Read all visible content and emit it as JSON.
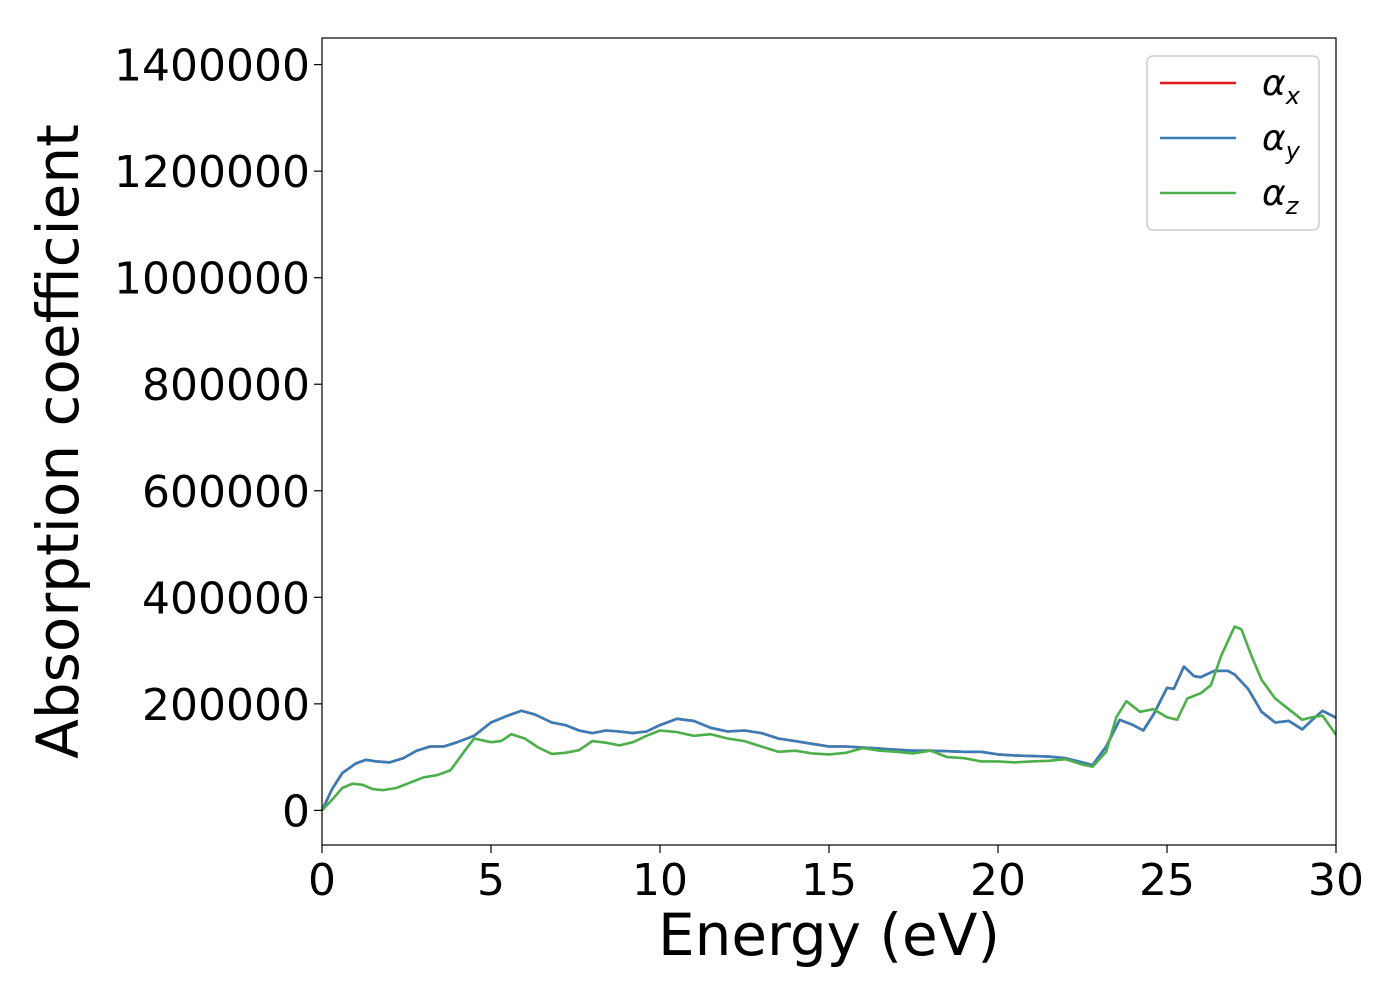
{
  "chart_data": {
    "type": "line",
    "title": "",
    "xlabel": "Energy (eV)",
    "ylabel": "Absorption coefficient",
    "xlim": [
      0,
      30
    ],
    "ylim": [
      -65000,
      1450000
    ],
    "xticks": [
      0,
      5,
      10,
      15,
      20,
      25,
      30
    ],
    "yticks": [
      0,
      200000,
      400000,
      600000,
      800000,
      1000000,
      1200000,
      1400000
    ],
    "grid": false,
    "legend_position": "top-right",
    "series": [
      {
        "name": "α",
        "name_subscript": "x",
        "color": "#e41a1c",
        "x": [
          0,
          0.3,
          0.6,
          1.0,
          1.3,
          1.6,
          2.0,
          2.4,
          2.8,
          3.2,
          3.6,
          4.0,
          4.5,
          5.0,
          5.5,
          5.9,
          6.3,
          6.8,
          7.2,
          7.6,
          8.0,
          8.4,
          8.8,
          9.2,
          9.6,
          10.0,
          10.5,
          11.0,
          11.5,
          12.0,
          12.5,
          13.0,
          13.5,
          14.0,
          14.5,
          15.0,
          15.5,
          16.0,
          16.5,
          17.0,
          17.5,
          18.0,
          18.5,
          19.0,
          19.5,
          20.0,
          20.5,
          21.0,
          21.5,
          22.0,
          22.5,
          22.8,
          23.2,
          23.6,
          24.0,
          24.3,
          24.6,
          25.0,
          25.2,
          25.5,
          25.8,
          26.0,
          26.4,
          26.8,
          27.0,
          27.4,
          27.8,
          28.2,
          28.6,
          29.0,
          29.3,
          29.6,
          30.0
        ],
        "y": [
          0,
          40000,
          70000,
          88000,
          95000,
          92000,
          90000,
          98000,
          112000,
          120000,
          120000,
          128000,
          140000,
          165000,
          178000,
          187000,
          180000,
          165000,
          160000,
          150000,
          145000,
          150000,
          148000,
          145000,
          148000,
          160000,
          172000,
          168000,
          155000,
          148000,
          150000,
          145000,
          135000,
          130000,
          125000,
          120000,
          120000,
          118000,
          116000,
          114000,
          112000,
          112000,
          111000,
          110000,
          110000,
          105000,
          103000,
          102000,
          101000,
          98000,
          90000,
          85000,
          120000,
          170000,
          160000,
          150000,
          180000,
          230000,
          228000,
          270000,
          252000,
          250000,
          262000,
          262000,
          255000,
          228000,
          185000,
          165000,
          168000,
          152000,
          170000,
          187000,
          174000
        ]
      },
      {
        "name": "α",
        "name_subscript": "y",
        "color": "#377eb8",
        "x": [
          0,
          0.3,
          0.6,
          1.0,
          1.3,
          1.6,
          2.0,
          2.4,
          2.8,
          3.2,
          3.6,
          4.0,
          4.5,
          5.0,
          5.5,
          5.9,
          6.3,
          6.8,
          7.2,
          7.6,
          8.0,
          8.4,
          8.8,
          9.2,
          9.6,
          10.0,
          10.5,
          11.0,
          11.5,
          12.0,
          12.5,
          13.0,
          13.5,
          14.0,
          14.5,
          15.0,
          15.5,
          16.0,
          16.5,
          17.0,
          17.5,
          18.0,
          18.5,
          19.0,
          19.5,
          20.0,
          20.5,
          21.0,
          21.5,
          22.0,
          22.5,
          22.8,
          23.2,
          23.6,
          24.0,
          24.3,
          24.6,
          25.0,
          25.2,
          25.5,
          25.8,
          26.0,
          26.4,
          26.8,
          27.0,
          27.4,
          27.8,
          28.2,
          28.6,
          29.0,
          29.3,
          29.6,
          30.0
        ],
        "y": [
          0,
          40000,
          70000,
          88000,
          95000,
          92000,
          90000,
          98000,
          112000,
          120000,
          120000,
          128000,
          140000,
          165000,
          178000,
          187000,
          180000,
          165000,
          160000,
          150000,
          145000,
          150000,
          148000,
          145000,
          148000,
          160000,
          172000,
          168000,
          155000,
          148000,
          150000,
          145000,
          135000,
          130000,
          125000,
          120000,
          120000,
          118000,
          116000,
          114000,
          112000,
          112000,
          111000,
          110000,
          110000,
          105000,
          103000,
          102000,
          101000,
          98000,
          90000,
          85000,
          120000,
          170000,
          160000,
          150000,
          180000,
          230000,
          228000,
          270000,
          252000,
          250000,
          262000,
          262000,
          255000,
          228000,
          185000,
          165000,
          168000,
          152000,
          170000,
          187000,
          174000
        ]
      },
      {
        "name": "α",
        "name_subscript": "z",
        "color": "#4daf4a",
        "x": [
          0,
          0.3,
          0.6,
          0.9,
          1.2,
          1.5,
          1.8,
          2.2,
          2.6,
          3.0,
          3.4,
          3.8,
          4.2,
          4.5,
          5.0,
          5.3,
          5.6,
          6.0,
          6.4,
          6.8,
          7.2,
          7.6,
          8.0,
          8.4,
          8.8,
          9.2,
          9.6,
          10.0,
          10.5,
          11.0,
          11.5,
          12.0,
          12.5,
          13.0,
          13.5,
          14.0,
          14.5,
          15.0,
          15.5,
          16.0,
          16.5,
          17.0,
          17.5,
          18.0,
          18.5,
          19.0,
          19.5,
          20.0,
          20.5,
          21.0,
          21.5,
          22.0,
          22.5,
          22.8,
          23.2,
          23.5,
          23.8,
          24.2,
          24.6,
          25.0,
          25.3,
          25.6,
          26.0,
          26.3,
          26.6,
          27.0,
          27.2,
          27.5,
          27.8,
          28.2,
          28.6,
          29.0,
          29.3,
          29.6,
          30.0
        ],
        "y": [
          0,
          20000,
          42000,
          50000,
          48000,
          40000,
          38000,
          42000,
          52000,
          62000,
          66000,
          75000,
          110000,
          135000,
          128000,
          130000,
          143000,
          135000,
          118000,
          106000,
          108000,
          113000,
          130000,
          127000,
          122000,
          128000,
          140000,
          150000,
          147000,
          140000,
          143000,
          135000,
          130000,
          120000,
          110000,
          112000,
          107000,
          105000,
          108000,
          117000,
          112000,
          110000,
          107000,
          112000,
          100000,
          98000,
          92000,
          92000,
          90000,
          92000,
          93000,
          96000,
          86000,
          82000,
          110000,
          175000,
          205000,
          185000,
          190000,
          175000,
          170000,
          210000,
          220000,
          235000,
          290000,
          345000,
          340000,
          290000,
          245000,
          210000,
          190000,
          170000,
          175000,
          178000,
          142000
        ]
      }
    ]
  }
}
